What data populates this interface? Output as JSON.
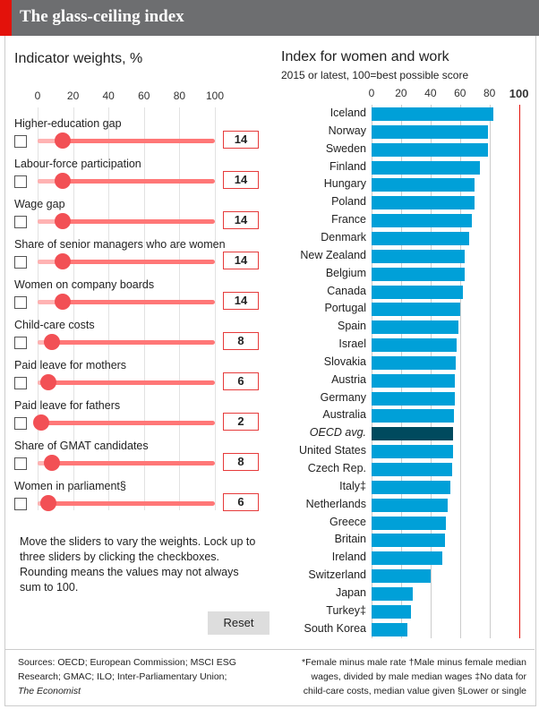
{
  "title": "The glass-ceiling index",
  "weights": {
    "heading": "Indicator weights, %",
    "ticks": [
      "0",
      "20",
      "40",
      "60",
      "80",
      "100"
    ],
    "indicators": [
      {
        "label": "Higher-education gap",
        "value": 14,
        "display": "14",
        "locked": false
      },
      {
        "label": "Labour-force participation",
        "value": 14,
        "display": "14",
        "locked": false
      },
      {
        "label": "Wage gap",
        "value": 14,
        "display": "14",
        "locked": false
      },
      {
        "label": "Share of senior managers who are women",
        "value": 14,
        "display": "14",
        "locked": false
      },
      {
        "label": "Women on company boards",
        "value": 14,
        "display": "14",
        "locked": false
      },
      {
        "label": "Child-care costs",
        "value": 8,
        "display": "8",
        "locked": false
      },
      {
        "label": "Paid leave for mothers",
        "value": 6,
        "display": "6",
        "locked": false
      },
      {
        "label": "Paid leave for fathers",
        "value": 2,
        "display": "2",
        "locked": false
      },
      {
        "label": "Share of GMAT candidates",
        "value": 8,
        "display": "8",
        "locked": false
      },
      {
        "label": "Women in parliament§",
        "value": 6,
        "display": "6",
        "locked": false
      }
    ],
    "note": "Move the sliders to vary the weights. Lock up to three sliders by clicking the checkboxes. Rounding means the values may not always sum to 100.",
    "reset_label": "Reset"
  },
  "chart_data": {
    "type": "bar",
    "title": "Index for women and work",
    "subtitle": "2015 or latest, 100=best possible score",
    "orientation": "horizontal",
    "xlim": [
      0,
      100
    ],
    "ticks": [
      "0",
      "20",
      "40",
      "60",
      "80",
      "100"
    ],
    "grid": true,
    "reference_line": 100,
    "colors": {
      "bar": "#00a0d8",
      "highlight": "#004a5e",
      "reference": "#e3120b"
    },
    "categories": [
      "Iceland",
      "Norway",
      "Sweden",
      "Finland",
      "Hungary",
      "Poland",
      "France",
      "Denmark",
      "New Zealand",
      "Belgium",
      "Canada",
      "Portugal",
      "Spain",
      "Israel",
      "Slovakia",
      "Austria",
      "Germany",
      "Australia",
      "OECD avg.",
      "United States",
      "Czech Rep.",
      "Italy‡",
      "Netherlands",
      "Greece",
      "Britain",
      "Ireland",
      "Switzerland",
      "Japan",
      "Turkey‡",
      "South Korea"
    ],
    "values": [
      82.6,
      79.2,
      79.2,
      73.7,
      70,
      70,
      68.2,
      66.4,
      63.4,
      63.4,
      62.2,
      60.1,
      59.1,
      57.9,
      57.3,
      56.7,
      56.7,
      56,
      55.5,
      55.5,
      54.9,
      53.6,
      51.8,
      50.6,
      50,
      48.2,
      40.3,
      28.1,
      26.9,
      24.5
    ],
    "highlight": "OECD avg."
  },
  "footer": {
    "sources": [
      "Sources: OECD; European Commission; MSCI ESG",
      "Research; GMAC; ILO; Inter-Parliamentary Union;",
      "The Economist"
    ],
    "notes": [
      "*Female minus male rate  †Male minus female median",
      "wages, divided by male median wages  ‡No data for",
      "child-care costs, median value given  §Lower or single"
    ]
  }
}
